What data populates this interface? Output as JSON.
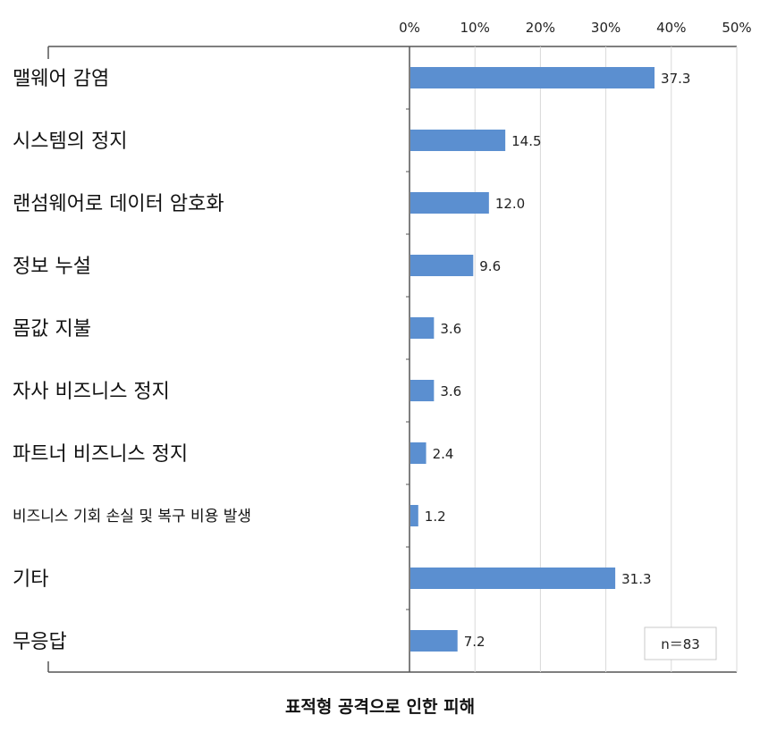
{
  "chart_data": {
    "type": "bar",
    "orientation": "horizontal",
    "categories": [
      "맬웨어 감염",
      "시스템의 정지",
      "랜섬웨어로 데이터 암호화",
      "정보 누설",
      "몸값 지불",
      "자사 비즈니스 정지",
      "파트너 비즈니스 정지",
      "비즈니스 기회 손실 및 복구 비용 발생",
      "기타",
      "무응답"
    ],
    "values": [
      37.3,
      14.5,
      12.0,
      9.6,
      3.6,
      3.6,
      2.4,
      1.2,
      31.3,
      7.2
    ],
    "value_labels": [
      "37.3",
      "14.5",
      "12.0",
      "9.6",
      "3.6",
      "3.6",
      "2.4",
      "1.2",
      "31.3",
      "7.2"
    ],
    "xlim": [
      0,
      50
    ],
    "x_ticks": [
      "0%",
      "10%",
      "20%",
      "30%",
      "40%",
      "50%"
    ],
    "x_axis_position": "top",
    "grid": true,
    "bar_color": "#5b8fd0",
    "annotation": "n＝83",
    "title": "표적형 공격으로 인한 피해"
  }
}
